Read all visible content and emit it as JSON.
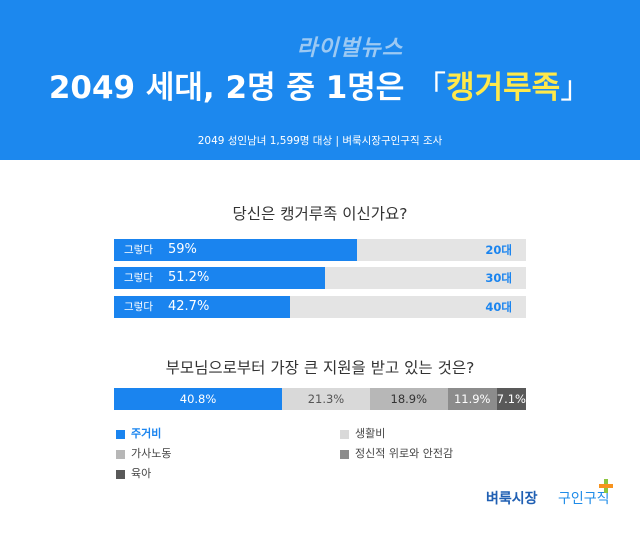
{
  "header": {
    "logo": "라이벌뉴스",
    "title_main": "2049 세대, 2명 중 1명은 ",
    "title_open": "「",
    "title_highlight": "캥거루족",
    "title_close": "」",
    "subtitle": "2049 성인남녀 1,599명 대상  |  벼룩시장구인구직 조사"
  },
  "colors": {
    "header_bg": "#1c88ee",
    "highlight": "#ffe94a",
    "bar_blue": "#1a84ef",
    "bar_bg": "#e4e4e4"
  },
  "brand": {
    "name_a": "벼룩시장",
    "name_b": "구인구직"
  },
  "chart_data": [
    {
      "type": "bar",
      "title": "당신은 캥거루족 이신가요?",
      "categories": [
        "20대",
        "30대",
        "40대"
      ],
      "row_label": "그렇다",
      "values": [
        59,
        51.2,
        42.7
      ],
      "value_labels": [
        "59%",
        "51.2%",
        "42.7%"
      ],
      "ylim": [
        0,
        100
      ]
    },
    {
      "type": "bar",
      "title": "부모님으로부터 가장 큰 지원을 받고 있는 것은?",
      "stacked": true,
      "series": [
        {
          "name": "주거비",
          "value": 40.8,
          "label": "40.8%",
          "color": "#1a84ef",
          "text_color": "#ffffff"
        },
        {
          "name": "생활비",
          "value": 21.3,
          "label": "21.3%",
          "color": "#d9d9d9",
          "text_color": "#555555"
        },
        {
          "name": "가사노동",
          "value": 18.9,
          "label": "18.9%",
          "color": "#b7b7b7",
          "text_color": "#333333"
        },
        {
          "name": "정신적 위로와 안전감",
          "value": 11.9,
          "label": "11.9%",
          "color": "#8c8c8c",
          "text_color": "#ffffff"
        },
        {
          "name": "육아",
          "value": 7.1,
          "label": "7.1%",
          "color": "#595959",
          "text_color": "#ffffff"
        }
      ]
    }
  ]
}
